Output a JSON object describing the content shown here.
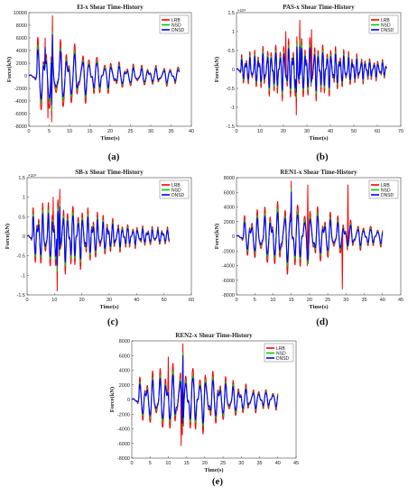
{
  "colors": {
    "LRB": "#ff0000",
    "NSD": "#00cc00",
    "DNSD": "#0000ff"
  },
  "chart_data": [
    {
      "type": "line",
      "title": "El-x Shear Time-History",
      "xlabel": "Time(s)",
      "ylabel": "Force(kN)",
      "xlim": [
        0,
        40
      ],
      "ylim": [
        -8000,
        10000
      ],
      "xticks": [
        0,
        5,
        10,
        15,
        20,
        25,
        30,
        35,
        40
      ],
      "yticks": [
        -8000,
        -6000,
        -4000,
        -2000,
        0,
        2000,
        4000,
        6000,
        8000,
        10000
      ],
      "y_exponent": "",
      "caption": "(a)",
      "duration": 37,
      "legend_position": "top-right",
      "series": [
        {
          "name": "LRB",
          "peaks": [
            [
              4,
              6000
            ],
            [
              5.8,
              9500
            ],
            [
              5.6,
              -7300
            ],
            [
              4.7,
              -6700
            ],
            [
              8,
              3600
            ]
          ]
        },
        {
          "name": "NSD",
          "peaks": [
            [
              5.8,
              7000
            ],
            [
              5.6,
              -5500
            ]
          ]
        },
        {
          "name": "DNSD",
          "peaks": [
            [
              5.8,
              6500
            ],
            [
              5.6,
              -4600
            ],
            [
              4,
              4500
            ]
          ]
        }
      ]
    },
    {
      "type": "line",
      "title": "PAS-x Shear Time-History",
      "xlabel": "Time(s)",
      "ylabel": "Force(kN)",
      "xlim": [
        0,
        70
      ],
      "ylim": [
        -1.5,
        1.5
      ],
      "xticks": [
        0,
        10,
        20,
        30,
        40,
        50,
        60,
        70
      ],
      "yticks": [
        -1.5,
        -1,
        -0.5,
        0,
        0.5,
        1,
        1.5
      ],
      "y_exponent": "×10⁴",
      "caption": "(b)",
      "duration": 64,
      "legend_position": "top-right",
      "series": [
        {
          "name": "LRB",
          "peaks": [
            [
              27,
              1.3
            ],
            [
              25.5,
              -1.2
            ],
            [
              21,
              1.0
            ],
            [
              32,
              1.05
            ]
          ]
        },
        {
          "name": "NSD",
          "peaks": [
            [
              27,
              0.8
            ],
            [
              25.5,
              -0.75
            ]
          ]
        },
        {
          "name": "DNSD",
          "peaks": [
            [
              27,
              0.6
            ],
            [
              25.5,
              -0.6
            ]
          ]
        }
      ]
    },
    {
      "type": "line",
      "title": "SB-x Shear Time-History",
      "xlabel": "Time(s)",
      "ylabel": "Force(kN)",
      "xlim": [
        0,
        60
      ],
      "ylim": [
        -1.5,
        1.5
      ],
      "xticks": [
        0,
        10,
        20,
        30,
        40,
        50,
        60
      ],
      "yticks": [
        -1.5,
        -1,
        -0.5,
        0,
        0.5,
        1,
        1.5
      ],
      "y_exponent": "×10⁴",
      "caption": "(c)",
      "duration": 52,
      "legend_position": "top-right",
      "series": [
        {
          "name": "LRB",
          "peaks": [
            [
              12,
              1.2
            ],
            [
              11,
              -1.4
            ],
            [
              9.5,
              1.0
            ]
          ]
        },
        {
          "name": "NSD",
          "peaks": [
            [
              12,
              0.85
            ],
            [
              11,
              -0.9
            ]
          ]
        },
        {
          "name": "DNSD",
          "peaks": [
            [
              12,
              0.75
            ],
            [
              11,
              -0.75
            ]
          ]
        }
      ]
    },
    {
      "type": "line",
      "title": "REN1-x Shear Time-History",
      "xlabel": "Time(s)",
      "ylabel": "Force(kN)",
      "xlim": [
        0,
        45
      ],
      "ylim": [
        -8000,
        8000
      ],
      "xticks": [
        0,
        5,
        10,
        15,
        20,
        25,
        30,
        35,
        40,
        45
      ],
      "yticks": [
        -8000,
        -6000,
        -4000,
        -2000,
        0,
        2000,
        4000,
        6000,
        8000
      ],
      "y_exponent": "",
      "caption": "(d)",
      "duration": 40,
      "legend_position": "top-right",
      "series": [
        {
          "name": "LRB",
          "peaks": [
            [
              15,
              7500
            ],
            [
              19.5,
              7000
            ],
            [
              30.5,
              7000
            ],
            [
              29,
              -7200
            ]
          ]
        },
        {
          "name": "NSD",
          "peaks": [
            [
              15,
              6500
            ]
          ]
        },
        {
          "name": "DNSD",
          "peaks": [
            [
              15,
              6000
            ]
          ]
        }
      ]
    },
    {
      "type": "line",
      "title": "REN2-x Shear Time-History",
      "xlabel": "Time(s)",
      "ylabel": "Force(kN)",
      "xlim": [
        0,
        45
      ],
      "ylim": [
        -8000,
        8000
      ],
      "xticks": [
        0,
        5,
        10,
        15,
        20,
        25,
        30,
        35,
        40,
        45
      ],
      "yticks": [
        -8000,
        -6000,
        -4000,
        -2000,
        0,
        2000,
        4000,
        6000,
        8000
      ],
      "y_exponent": "",
      "caption": "(e)",
      "duration": 40,
      "legend_position": "top-right",
      "series": [
        {
          "name": "LRB",
          "peaks": [
            [
              14,
              7600
            ],
            [
              13.5,
              -6300
            ],
            [
              10,
              5800
            ]
          ]
        },
        {
          "name": "NSD",
          "peaks": [
            [
              14,
              6500
            ]
          ]
        },
        {
          "name": "DNSD",
          "peaks": [
            [
              14,
              6000
            ]
          ]
        }
      ]
    }
  ]
}
